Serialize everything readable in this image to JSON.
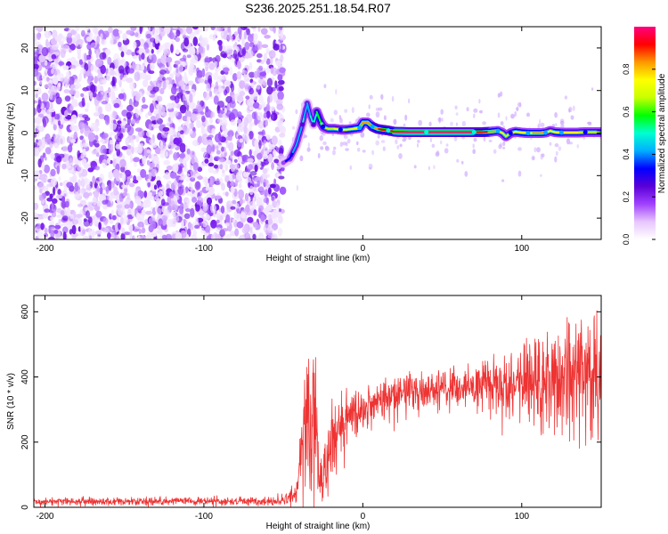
{
  "figure_title": "S236.2025.251.18.54.R07",
  "chart_data": [
    {
      "type": "heatmap",
      "title": "S236.2025.251.18.54.R07",
      "xlabel": "Height of straight line (km)",
      "ylabel": "Frequency (Hz)",
      "xlim": [
        -207,
        150
      ],
      "ylim": [
        -25,
        25
      ],
      "xticks": [
        -200,
        -100,
        0,
        100
      ],
      "yticks": [
        -20,
        -10,
        0,
        10,
        20
      ],
      "colorbar": {
        "label": "Normalized spectral amplitude",
        "range": [
          0.0,
          1.0
        ],
        "ticks": [
          0.0,
          0.2,
          0.4,
          0.6,
          0.8
        ],
        "colormap": [
          "#ffffff",
          "#e7c6ff",
          "#a040ff",
          "#5a00d8",
          "#0000ff",
          "#00b0ff",
          "#00ffd0",
          "#00ff00",
          "#c8ff00",
          "#ffff00",
          "#ff9900",
          "#ff0000",
          "#ff0080"
        ]
      },
      "noise_region_x": [
        -207,
        -50
      ],
      "ridge": {
        "x": [
          -50,
          -46,
          -42,
          -38,
          -35,
          -33,
          -31,
          -29,
          -27,
          -25,
          -22,
          -18,
          -14,
          -10,
          -6,
          -2,
          0,
          3,
          6,
          9,
          12,
          16,
          20,
          30,
          40,
          50,
          60,
          70,
          75,
          80,
          85,
          88,
          90,
          93,
          96,
          100,
          104,
          108,
          112,
          115,
          118,
          121,
          125,
          130,
          135,
          140,
          145,
          150
        ],
        "y": [
          -7,
          -6,
          -3,
          2,
          7,
          4,
          2,
          5,
          3,
          1.5,
          1,
          1,
          0.8,
          0.8,
          1,
          1.2,
          2.5,
          2.5,
          1.5,
          1,
          0.8,
          0.6,
          0.3,
          0.2,
          0.2,
          0.2,
          0.2,
          0.2,
          0.2,
          0.3,
          0.5,
          0,
          -0.8,
          0,
          0.3,
          0.1,
          0,
          0,
          0,
          0.1,
          0.5,
          0.2,
          0.1,
          0.1,
          0.1,
          0.2,
          0.2,
          0.2
        ],
        "amplitude": [
          0.35,
          0.4,
          0.45,
          0.5,
          0.45,
          0.5,
          0.55,
          0.6,
          0.65,
          0.7,
          0.72,
          0.75,
          0.75,
          0.8,
          0.8,
          0.85,
          0.85,
          0.85,
          0.9,
          0.9,
          0.95,
          0.95,
          1.0,
          1.0,
          1.0,
          1.0,
          1.0,
          1.0,
          0.95,
          0.9,
          0.8,
          0.75,
          0.7,
          0.75,
          0.8,
          0.8,
          0.8,
          0.85,
          0.85,
          0.8,
          0.75,
          0.8,
          0.8,
          0.78,
          0.75,
          0.72,
          0.7,
          0.65
        ]
      }
    },
    {
      "type": "line",
      "xlabel": "Height of straight line (km)",
      "ylabel": "SNR (10 * v/v)",
      "xlim": [
        -207,
        150
      ],
      "ylim": [
        0,
        650
      ],
      "xticks": [
        -200,
        -100,
        0,
        100
      ],
      "yticks": [
        0,
        200,
        400,
        600
      ],
      "series": [
        {
          "name": "SNR",
          "color": "#ee3333",
          "x": [
            -207,
            -190,
            -170,
            -150,
            -130,
            -110,
            -90,
            -70,
            -50,
            -42,
            -40,
            -38,
            -36,
            -34,
            -32,
            -30,
            -28,
            -26,
            -24,
            -22,
            -20,
            -18,
            -16,
            -14,
            -12,
            -10,
            -8,
            -5,
            -2,
            0,
            5,
            10,
            15,
            20,
            25,
            30,
            35,
            40,
            45,
            50,
            55,
            60,
            65,
            70,
            75,
            80,
            85,
            90,
            95,
            100,
            105,
            110,
            115,
            120,
            125,
            130,
            135,
            140,
            145,
            150
          ],
          "y": [
            18,
            18,
            18,
            18,
            18,
            18,
            18,
            18,
            20,
            40,
            110,
            230,
            300,
            250,
            220,
            310,
            120,
            80,
            110,
            150,
            180,
            200,
            230,
            250,
            260,
            270,
            280,
            285,
            290,
            300,
            310,
            320,
            335,
            345,
            350,
            355,
            360,
            360,
            362,
            365,
            365,
            366,
            368,
            370,
            372,
            374,
            375,
            376,
            378,
            380,
            382,
            384,
            386,
            388,
            390,
            392,
            394,
            396,
            398,
            400
          ],
          "spread": [
            6,
            6,
            6,
            6,
            6,
            6,
            6,
            6,
            8,
            20,
            45,
            80,
            110,
            140,
            120,
            90,
            50,
            40,
            55,
            60,
            65,
            60,
            55,
            50,
            45,
            45,
            40,
            40,
            40,
            40,
            38,
            36,
            34,
            32,
            30,
            30,
            30,
            30,
            30,
            30,
            32,
            32,
            34,
            36,
            40,
            45,
            50,
            55,
            60,
            65,
            70,
            75,
            80,
            85,
            90,
            95,
            100,
            105,
            110,
            115
          ]
        }
      ]
    }
  ]
}
